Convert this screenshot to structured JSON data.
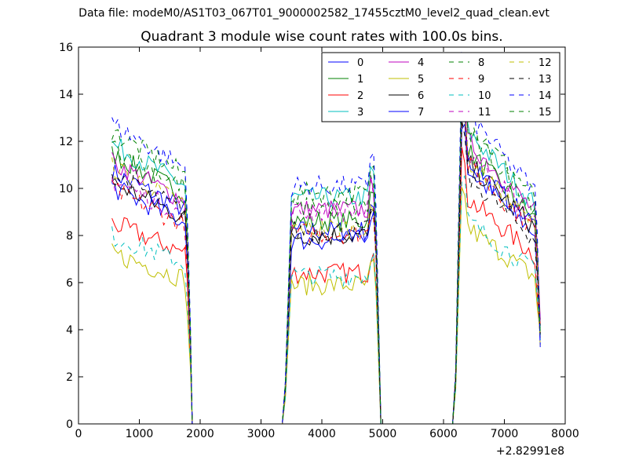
{
  "header": {
    "suptitle": "Data file: modeM0/AS1T03_067T01_9000002582_17455cztM0_level2_quad_clean.evt"
  },
  "chart_data": {
    "type": "line",
    "title": "Quadrant 3 module wise count rates with 100.0s bins.",
    "xlabel": "",
    "ylabel": "",
    "xlim": [
      0,
      8000
    ],
    "ylim": [
      0,
      16
    ],
    "x_offset_label": "+2.82991e8",
    "xticks": [
      "0",
      "1000",
      "2000",
      "3000",
      "4000",
      "5000",
      "6000",
      "7000",
      "8000"
    ],
    "yticks": [
      "0",
      "2",
      "4",
      "6",
      "8",
      "10",
      "12",
      "14",
      "16"
    ],
    "grid": false,
    "legend_position": "top-right",
    "legend_columns": 4,
    "segments": [
      {
        "x_start": 550,
        "x_end": 1750
      },
      {
        "x_start": 3500,
        "x_end": 4850
      },
      {
        "x_start": 6300,
        "x_end": 7500
      }
    ],
    "series": [
      {
        "name": "0",
        "color": "#0000ff",
        "dash": false,
        "levels": [
          9.9,
          8.2,
          10.5
        ]
      },
      {
        "name": "1",
        "color": "#008000",
        "dash": false,
        "levels": [
          10.6,
          8.6,
          11.3
        ]
      },
      {
        "name": "2",
        "color": "#ff0000",
        "dash": false,
        "levels": [
          7.9,
          6.4,
          9.3
        ]
      },
      {
        "name": "3",
        "color": "#00bfbf",
        "dash": false,
        "levels": [
          11.0,
          9.6,
          12.1
        ]
      },
      {
        "name": "4",
        "color": "#bf00bf",
        "dash": false,
        "levels": [
          10.3,
          9.1,
          11.7
        ]
      },
      {
        "name": "5",
        "color": "#bfbf00",
        "dash": false,
        "levels": [
          6.7,
          5.9,
          8.1
        ]
      },
      {
        "name": "6",
        "color": "#000000",
        "dash": false,
        "levels": [
          9.5,
          8.0,
          10.8
        ]
      },
      {
        "name": "7",
        "color": "#0000ff",
        "dash": false,
        "levels": [
          9.3,
          7.8,
          10.9
        ]
      },
      {
        "name": "8",
        "color": "#008000",
        "dash": true,
        "levels": [
          11.5,
          9.8,
          12.5
        ]
      },
      {
        "name": "9",
        "color": "#ff0000",
        "dash": true,
        "levels": [
          9.2,
          8.1,
          10.7
        ]
      },
      {
        "name": "10",
        "color": "#00bfbf",
        "dash": true,
        "levels": [
          7.4,
          6.3,
          8.4
        ]
      },
      {
        "name": "11",
        "color": "#bf00bf",
        "dash": true,
        "levels": [
          9.6,
          9.0,
          11.2
        ]
      },
      {
        "name": "12",
        "color": "#bfbf00",
        "dash": true,
        "levels": [
          10.1,
          8.3,
          10.9
        ]
      },
      {
        "name": "13",
        "color": "#000000",
        "dash": true,
        "levels": [
          9.8,
          8.2,
          10.2
        ]
      },
      {
        "name": "14",
        "color": "#0000ff",
        "dash": true,
        "levels": [
          11.8,
          10.1,
          12.8
        ]
      },
      {
        "name": "15",
        "color": "#008000",
        "dash": true,
        "levels": [
          10.9,
          9.2,
          12.0
        ]
      }
    ]
  }
}
